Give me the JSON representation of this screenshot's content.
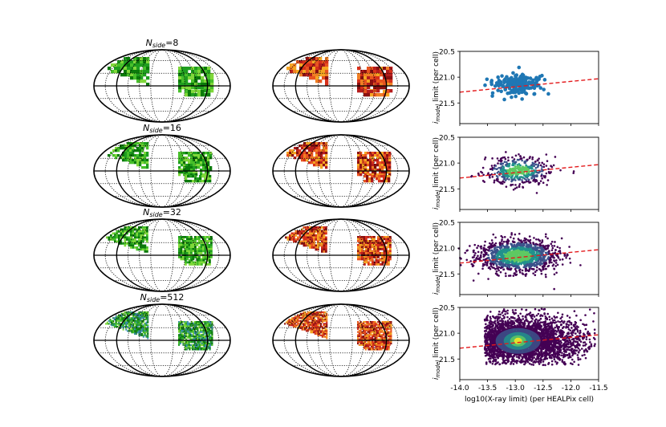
{
  "row_titles": [
    {
      "sym": "N",
      "sub": "side",
      "val": "=8"
    },
    {
      "sym": "N",
      "sub": "side",
      "val": "=16"
    },
    {
      "sym": "N",
      "sub": "side",
      "val": "=32"
    },
    {
      "sym": "N",
      "sub": "side",
      "val": "=512"
    }
  ],
  "colors": {
    "green_map": [
      "#0b7a0b",
      "#1f9e1f",
      "#47bf2a",
      "#7fd83a",
      "#2e8b57",
      "#3a8fb0"
    ],
    "red_map": [
      "#f5a623",
      "#f07f24",
      "#e8541f",
      "#d6301b",
      "#b51d1d",
      "#8b1010"
    ],
    "scatter_blue": "#1f77b4",
    "fit_line": "#e41a1c",
    "viridis": [
      "#440154",
      "#3b528b",
      "#21918c",
      "#5ec962",
      "#fde725"
    ]
  },
  "chart_data": [
    {
      "type": "scatter",
      "ylabel_sym": "i",
      "ylabel_sub": "model",
      "ylabel_text": " limit (per cell)",
      "xlim": [
        -14.0,
        -11.5
      ],
      "ylim": [
        21.9,
        20.5
      ],
      "yticks": [
        "20.5",
        "21.0",
        "21.5"
      ],
      "xticks": [],
      "fit": {
        "x": [
          -14.0,
          -11.5
        ],
        "y": [
          21.29,
          21.03
        ]
      },
      "xlabel": "",
      "style": "blue",
      "cloud": {
        "cx": -12.95,
        "cy": 21.15,
        "sx": 0.22,
        "sy": 0.1,
        "n": 180
      }
    },
    {
      "type": "scatter",
      "ylabel_sym": "i",
      "ylabel_sub": "model",
      "ylabel_text": " limit (per cell)",
      "xlim": [
        -14.0,
        -11.5
      ],
      "ylim": [
        21.9,
        20.5
      ],
      "yticks": [
        "20.5",
        "21.0",
        "21.5"
      ],
      "xticks": [],
      "fit": {
        "x": [
          -14.0,
          -11.5
        ],
        "y": [
          21.29,
          21.03
        ]
      },
      "xlabel": "",
      "style": "density",
      "cloud": {
        "cx": -12.95,
        "cy": 21.15,
        "sx": 0.28,
        "sy": 0.13,
        "n": 500
      }
    },
    {
      "type": "scatter",
      "ylabel_sym": "i",
      "ylabel_sub": "model",
      "ylabel_text": " limit (per cell)",
      "xlim": [
        -14.0,
        -11.5
      ],
      "ylim": [
        21.9,
        20.5
      ],
      "yticks": [
        "20.5",
        "21.0",
        "21.5"
      ],
      "xticks": [],
      "fit": {
        "x": [
          -14.0,
          -11.5
        ],
        "y": [
          21.29,
          21.03
        ]
      },
      "xlabel": "",
      "style": "density",
      "cloud": {
        "cx": -12.95,
        "cy": 21.15,
        "sx": 0.34,
        "sy": 0.15,
        "n": 1400
      }
    },
    {
      "type": "scatter",
      "ylabel_sym": "i",
      "ylabel_sub": "model",
      "ylabel_text": " limit (per cell)",
      "xlim": [
        -14.0,
        -11.5
      ],
      "ylim": [
        21.9,
        20.5
      ],
      "yticks": [
        "20.5",
        "21.0",
        "21.5"
      ],
      "xticks": [
        "-14.0",
        "-13.5",
        "-13.0",
        "-12.5",
        "-12.0",
        "-11.5"
      ],
      "fit": {
        "x": [
          -14.0,
          -11.5
        ],
        "y": [
          21.29,
          21.03
        ]
      },
      "xlabel": "log10(X-ray limit) (per HEALPix cell)",
      "style": "hexcloud",
      "cloud": {
        "cx": -12.95,
        "cy": 21.15,
        "sx": 0.45,
        "sy": 0.18,
        "n": 4000
      }
    }
  ]
}
